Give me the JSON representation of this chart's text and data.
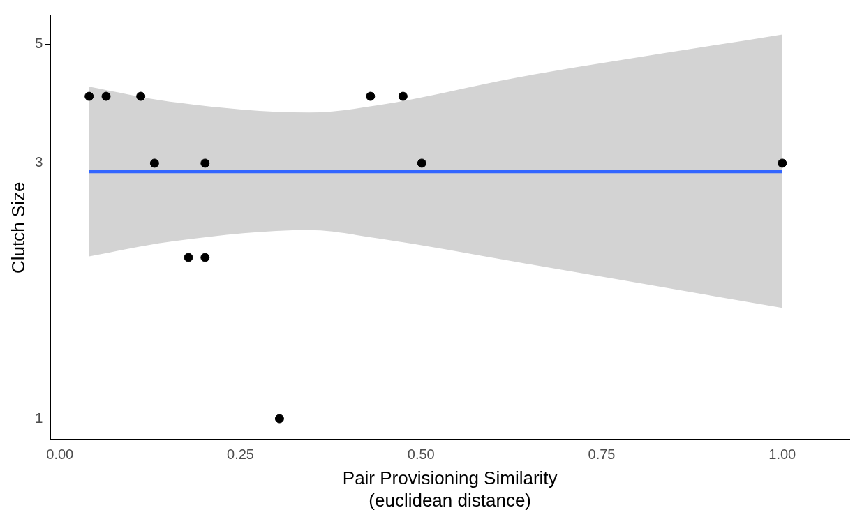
{
  "chart_data": {
    "type": "scatter",
    "xlabel": "Pair Provisioning Similarity\n(euclidean distance)",
    "ylabel": "Clutch Size",
    "log": "y",
    "grid": false,
    "legend": false,
    "marker": "circle",
    "xlim": [
      -0.013,
      1.093
    ],
    "xticks": [
      {
        "value": 0,
        "label": "0.00"
      },
      {
        "value": 0.25,
        "label": "0.25"
      },
      {
        "value": 0.5,
        "label": "0.50"
      },
      {
        "value": 0.75,
        "label": "0.75"
      },
      {
        "value": 1,
        "label": "1.00"
      }
    ],
    "ylim": [
      0.915,
      5.65
    ],
    "yticks": [
      1,
      3,
      5
    ],
    "series": [
      {
        "type": "scatter",
        "color": "#000000",
        "x": [
          0.0405,
          0.064,
          0.112,
          0.131,
          0.178,
          0.201,
          0.201,
          0.304,
          0.43,
          0.475,
          0.501,
          1.0
        ],
        "values": [
          4,
          4,
          4,
          3,
          2,
          2,
          3,
          1,
          4,
          4,
          3,
          3
        ]
      },
      {
        "type": "line",
        "marker": "none",
        "color": "#3366ff",
        "x": [
          0.0405,
          0.152,
          0.345,
          0.441,
          0.634,
          1.0
        ],
        "values": [
          2.896,
          2.896,
          2.896,
          2.896,
          2.896,
          2.896
        ],
        "lower": [
          2.01,
          2.14,
          2.25,
          2.17,
          1.96,
          1.61
        ],
        "upper": [
          4.17,
          3.91,
          3.73,
          3.85,
          4.34,
          5.22
        ]
      }
    ]
  }
}
